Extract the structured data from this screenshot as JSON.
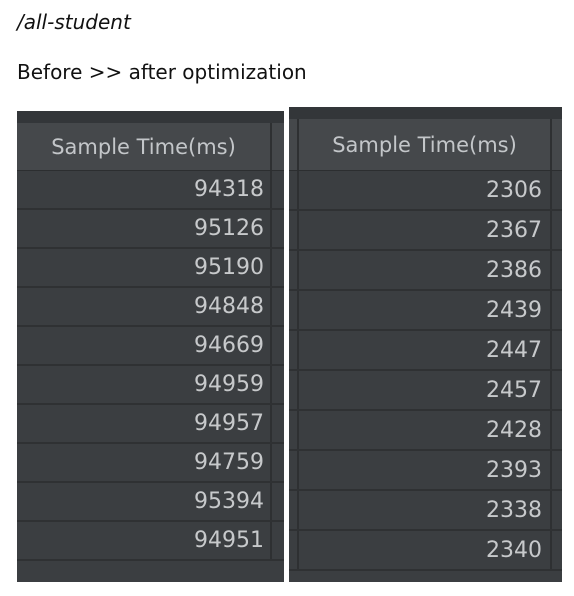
{
  "title": "/all-student",
  "subtitle": "Before >> after optimization",
  "before": {
    "header": "Sample Time(ms)",
    "values": [
      "94318",
      "95126",
      "95190",
      "94848",
      "94669",
      "94959",
      "94957",
      "94759",
      "95394",
      "94951"
    ]
  },
  "after": {
    "header": "Sample Time(ms)",
    "values": [
      "2306",
      "2367",
      "2386",
      "2439",
      "2447",
      "2457",
      "2428",
      "2393",
      "2338",
      "2340"
    ]
  }
}
